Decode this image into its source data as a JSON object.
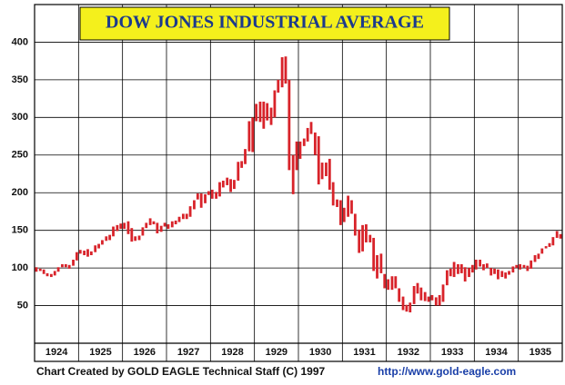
{
  "chart_data": {
    "type": "range_bar",
    "title": "DOW JONES INDUSTRIAL AVERAGE",
    "footer": "Chart Created by GOLD EAGLE Technical Staff (C) 1997",
    "url": "http://www.gold-eagle.com",
    "color": "#d8232a",
    "grid": true,
    "ylim": [
      0,
      450
    ],
    "yticks": [
      50,
      100,
      150,
      200,
      250,
      300,
      350,
      400
    ],
    "xlim": [
      1924,
      1936
    ],
    "xticks": [
      {
        "value": 1924.5,
        "label": "1924"
      },
      {
        "value": 1925.5,
        "label": "1925"
      },
      {
        "value": 1926.5,
        "label": "1926"
      },
      {
        "value": 1927.5,
        "label": "1927"
      },
      {
        "value": 1928.5,
        "label": "1928"
      },
      {
        "value": 1929.5,
        "label": "1929"
      },
      {
        "value": 1930.5,
        "label": "1930"
      },
      {
        "value": 1931.5,
        "label": "1931"
      },
      {
        "value": 1932.5,
        "label": "1932"
      },
      {
        "value": 1933.5,
        "label": "1933"
      },
      {
        "value": 1934.5,
        "label": "1934"
      },
      {
        "value": 1935.5,
        "label": "1935"
      }
    ],
    "x": [
      1924.04,
      1924.13,
      1924.21,
      1924.29,
      1924.38,
      1924.46,
      1924.54,
      1924.63,
      1924.71,
      1924.79,
      1924.88,
      1924.96,
      1925.04,
      1925.13,
      1925.21,
      1925.29,
      1925.38,
      1925.46,
      1925.54,
      1925.63,
      1925.71,
      1925.79,
      1925.88,
      1925.96,
      1926.04,
      1926.13,
      1926.21,
      1926.29,
      1926.38,
      1926.46,
      1926.54,
      1926.63,
      1926.71,
      1926.79,
      1926.88,
      1926.96,
      1927.04,
      1927.13,
      1927.21,
      1927.29,
      1927.38,
      1927.46,
      1927.54,
      1927.63,
      1927.71,
      1927.79,
      1927.88,
      1927.96,
      1928.04,
      1928.13,
      1928.21,
      1928.29,
      1928.38,
      1928.46,
      1928.54,
      1928.63,
      1928.71,
      1928.79,
      1928.88,
      1928.96,
      1929.04,
      1929.13,
      1929.21,
      1929.29,
      1929.38,
      1929.46,
      1929.54,
      1929.63,
      1929.71,
      1929.79,
      1929.88,
      1929.96,
      1930.04,
      1930.13,
      1930.21,
      1930.29,
      1930.38,
      1930.46,
      1930.54,
      1930.63,
      1930.71,
      1930.79,
      1930.88,
      1930.96,
      1931.04,
      1931.13,
      1931.21,
      1931.29,
      1931.38,
      1931.46,
      1931.54,
      1931.63,
      1931.71,
      1931.79,
      1931.88,
      1931.96,
      1932.04,
      1932.13,
      1932.21,
      1932.29,
      1932.38,
      1932.46,
      1932.54,
      1932.63,
      1932.71,
      1932.79,
      1932.88,
      1932.96,
      1933.04,
      1933.13,
      1933.21,
      1933.29,
      1933.38,
      1933.46,
      1933.54,
      1933.63,
      1933.71,
      1933.79,
      1933.88,
      1933.96,
      1934.04,
      1934.13,
      1934.21,
      1934.29,
      1934.38,
      1934.46,
      1934.54,
      1934.63,
      1934.71,
      1934.79,
      1934.88,
      1934.96,
      1935.04,
      1935.13,
      1935.21,
      1935.29,
      1935.38,
      1935.46,
      1935.54,
      1935.63,
      1935.71,
      1935.79,
      1935.88,
      1935.96
    ],
    "low": [
      95,
      96,
      92,
      89,
      88,
      90,
      95,
      101,
      101,
      99,
      103,
      110,
      119,
      117,
      115,
      117,
      121,
      126,
      131,
      136,
      137,
      142,
      149,
      152,
      152,
      145,
      135,
      136,
      137,
      143,
      153,
      157,
      158,
      146,
      148,
      155,
      152,
      154,
      158,
      161,
      165,
      165,
      168,
      178,
      191,
      180,
      186,
      197,
      192,
      192,
      195,
      207,
      210,
      201,
      205,
      216,
      233,
      238,
      255,
      254,
      295,
      294,
      285,
      296,
      290,
      300,
      333,
      340,
      345,
      230,
      198,
      230,
      245,
      262,
      268,
      278,
      250,
      211,
      218,
      222,
      204,
      183,
      181,
      157,
      161,
      168,
      172,
      143,
      120,
      122,
      134,
      134,
      96,
      86,
      93,
      73,
      71,
      71,
      73,
      55,
      44,
      42,
      41,
      52,
      66,
      57,
      56,
      55,
      57,
      50,
      50,
      55,
      77,
      89,
      88,
      92,
      93,
      82,
      88,
      94,
      98,
      102,
      97,
      100,
      90,
      92,
      85,
      88,
      86,
      91,
      94,
      100,
      98,
      100,
      96,
      99,
      108,
      112,
      119,
      126,
      128,
      130,
      140,
      139
    ],
    "high": [
      101,
      99,
      98,
      93,
      92,
      96,
      101,
      105,
      105,
      104,
      111,
      121,
      124,
      123,
      125,
      122,
      130,
      132,
      137,
      142,
      144,
      155,
      157,
      159,
      160,
      162,
      153,
      142,
      143,
      154,
      160,
      166,
      162,
      160,
      156,
      160,
      158,
      162,
      163,
      168,
      172,
      172,
      182,
      190,
      199,
      199,
      198,
      202,
      204,
      201,
      214,
      216,
      220,
      218,
      217,
      241,
      242,
      258,
      295,
      300,
      318,
      321,
      321,
      319,
      313,
      336,
      350,
      380,
      381,
      350,
      250,
      268,
      268,
      272,
      286,
      294,
      280,
      275,
      240,
      240,
      245,
      214,
      191,
      190,
      180,
      196,
      190,
      172,
      151,
      157,
      158,
      144,
      140,
      117,
      119,
      92,
      85,
      89,
      89,
      73,
      62,
      51,
      54,
      76,
      80,
      74,
      68,
      62,
      64,
      61,
      64,
      78,
      97,
      99,
      108,
      105,
      105,
      101,
      100,
      104,
      111,
      111,
      105,
      106,
      100,
      99,
      98,
      96,
      94,
      96,
      102,
      104,
      105,
      104,
      103,
      110,
      117,
      119,
      126,
      129,
      133,
      141,
      149,
      145
    ]
  }
}
